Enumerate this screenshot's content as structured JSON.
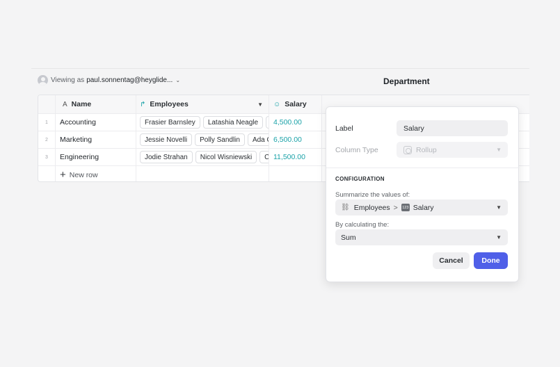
{
  "viewer": {
    "prefix": "Viewing as",
    "user": "paul.sonnentag@heyglide...",
    "chevron": "⌄"
  },
  "table_title": "Department",
  "columns": [
    {
      "label": "Name",
      "icon": "text-type-icon",
      "glyph": "A"
    },
    {
      "label": "Employees",
      "icon": "relation-arrow-icon",
      "glyph": "↱"
    },
    {
      "label": "Salary",
      "icon": "rollup-icon",
      "glyph": "☺"
    }
  ],
  "rows": [
    {
      "num": "1",
      "name": "Accounting",
      "employees": [
        "Frasier Barnsley",
        "Latashia Neagle",
        "..."
      ],
      "salary": "4,500.00"
    },
    {
      "num": "2",
      "name": "Marketing",
      "employees": [
        "Jessie Novelli",
        "Polly Sandlin",
        "Ada C"
      ],
      "salary": "6,500.00"
    },
    {
      "num": "3",
      "name": "Engineering",
      "employees": [
        "Jodie Strahan",
        "Nicol Wisniewski",
        "C"
      ],
      "salary": "11,500.00"
    }
  ],
  "new_row_label": "New row",
  "panel": {
    "label_title": "Label",
    "label_value": "Salary",
    "column_type_title": "Column Type",
    "column_type_value": "Rollup",
    "section_title": "CONFIGURATION",
    "summarize_label": "Summarize the values of:",
    "summarize_source": "Employees",
    "summarize_arrow": ">",
    "summarize_column_badge": "123",
    "summarize_column": "Salary",
    "calculate_label": "By calculating the:",
    "calculate_value": "Sum",
    "cancel_label": "Cancel",
    "done_label": "Done"
  },
  "colors": {
    "accent": "#4f5fe8",
    "salary_text": "#1aa2a8"
  }
}
